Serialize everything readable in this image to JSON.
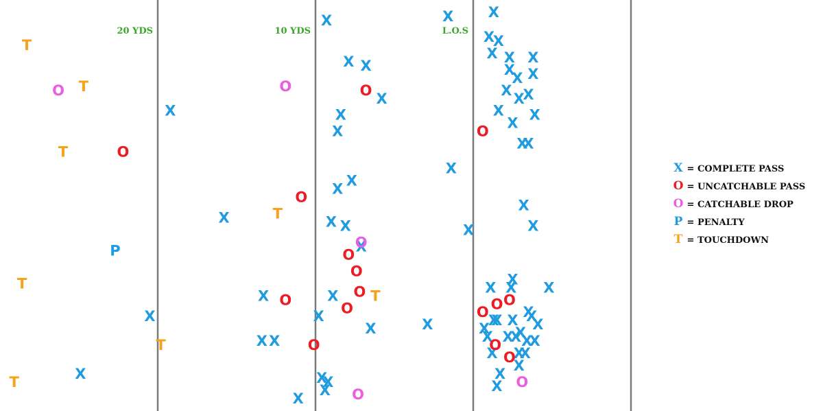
{
  "chart_data": {
    "type": "scatter",
    "title": "",
    "xlabel": "",
    "ylabel": "",
    "xlim": [
      -30,
      14
    ],
    "ylim": [
      0,
      100
    ],
    "grid": false,
    "legend_position": "right",
    "yard_lines": [
      {
        "x": -20,
        "label": "20 YDS"
      },
      {
        "x": -10,
        "label": "10 YDS"
      },
      {
        "x": 0,
        "label": "L.O.S"
      },
      {
        "x": 10,
        "label": ""
      }
    ],
    "categories": [
      {
        "key": "complete",
        "symbol": "X",
        "color": "#1f9be0",
        "legend_label": " = COMPLETE PASS"
      },
      {
        "key": "uncatchable",
        "symbol": "O",
        "color": "#ec1c24",
        "legend_label": " = UNCATCHABLE PASS"
      },
      {
        "key": "drop",
        "symbol": "O",
        "color": "#ea5ee0",
        "legend_label": " = CATCHABLE DROP"
      },
      {
        "key": "penalty",
        "symbol": "P",
        "color": "#1f9be0",
        "legend_label": " = PENALTY"
      },
      {
        "key": "touchdown",
        "symbol": "T",
        "color": "#f7a21a",
        "legend_label": " = TOUCHDOWN"
      }
    ],
    "series": [
      {
        "key": "complete",
        "points": [
          [
            -19.2,
            73
          ],
          [
            -24.9,
            9
          ],
          [
            -15.8,
            47
          ],
          [
            -20.5,
            23
          ],
          [
            -13.3,
            28
          ],
          [
            -12.6,
            17
          ],
          [
            -13.4,
            17
          ],
          [
            -11.1,
            3
          ],
          [
            -9.2,
            7
          ],
          [
            -9.8,
            23
          ],
          [
            -9.3,
            95
          ],
          [
            -7.9,
            85
          ],
          [
            -8.4,
            72
          ],
          [
            -8.6,
            68
          ],
          [
            -8.6,
            54
          ],
          [
            -9.0,
            46
          ],
          [
            -8.1,
            45
          ],
          [
            -7.1,
            40
          ],
          [
            -7.7,
            56
          ],
          [
            -8.9,
            28
          ],
          [
            -9.4,
            5
          ],
          [
            -9.6,
            8
          ],
          [
            -6.8,
            84
          ],
          [
            -5.8,
            76
          ],
          [
            -6.5,
            20
          ],
          [
            -2.9,
            21
          ],
          [
            -1.6,
            96
          ],
          [
            -1.4,
            59
          ],
          [
            -0.3,
            44
          ],
          [
            1.3,
            97
          ],
          [
            1.0,
            91
          ],
          [
            1.6,
            90
          ],
          [
            1.2,
            87
          ],
          [
            2.3,
            86
          ],
          [
            3.8,
            86
          ],
          [
            2.3,
            83
          ],
          [
            2.8,
            81
          ],
          [
            3.8,
            82
          ],
          [
            2.1,
            78
          ],
          [
            3.5,
            77
          ],
          [
            2.9,
            76
          ],
          [
            1.6,
            73
          ],
          [
            3.9,
            72
          ],
          [
            2.5,
            70
          ],
          [
            3.1,
            65
          ],
          [
            3.5,
            65
          ],
          [
            3.2,
            50
          ],
          [
            3.8,
            45
          ],
          [
            1.1,
            30
          ],
          [
            2.4,
            30
          ],
          [
            2.5,
            32
          ],
          [
            4.8,
            30
          ],
          [
            3.5,
            24
          ],
          [
            3.7,
            23
          ],
          [
            0.7,
            20
          ],
          [
            1.3,
            22
          ],
          [
            1.5,
            22
          ],
          [
            2.5,
            22
          ],
          [
            4.1,
            21
          ],
          [
            0.9,
            18
          ],
          [
            2.2,
            18
          ],
          [
            3.0,
            19
          ],
          [
            3.4,
            17
          ],
          [
            3.9,
            17
          ],
          [
            2.7,
            18
          ],
          [
            1.2,
            14
          ],
          [
            2.9,
            14
          ],
          [
            3.3,
            14
          ],
          [
            1.7,
            9
          ],
          [
            2.9,
            11
          ],
          [
            1.5,
            6
          ]
        ]
      },
      {
        "key": "uncatchable",
        "points": [
          [
            -22.2,
            63
          ],
          [
            -11.9,
            27
          ],
          [
            -10.1,
            16
          ],
          [
            -10.9,
            52
          ],
          [
            -6.8,
            78
          ],
          [
            -7.9,
            38
          ],
          [
            -7.4,
            34
          ],
          [
            -7.2,
            29
          ],
          [
            -8.0,
            25
          ],
          [
            0.6,
            68
          ],
          [
            0.6,
            24
          ],
          [
            1.5,
            26
          ],
          [
            2.3,
            27
          ],
          [
            1.4,
            16
          ],
          [
            2.3,
            13
          ]
        ]
      },
      {
        "key": "drop",
        "points": [
          [
            -26.3,
            78
          ],
          [
            -11.9,
            79
          ],
          [
            -7.1,
            41
          ],
          [
            -7.3,
            4
          ],
          [
            3.1,
            7
          ]
        ]
      },
      {
        "key": "penalty",
        "points": [
          [
            -22.7,
            39
          ]
        ]
      },
      {
        "key": "touchdown",
        "points": [
          [
            -28.3,
            89
          ],
          [
            -24.7,
            79
          ],
          [
            -26.0,
            63
          ],
          [
            -28.6,
            31
          ],
          [
            -19.8,
            16
          ],
          [
            -29.1,
            7
          ],
          [
            -12.4,
            48
          ],
          [
            -6.2,
            28
          ]
        ]
      }
    ]
  }
}
